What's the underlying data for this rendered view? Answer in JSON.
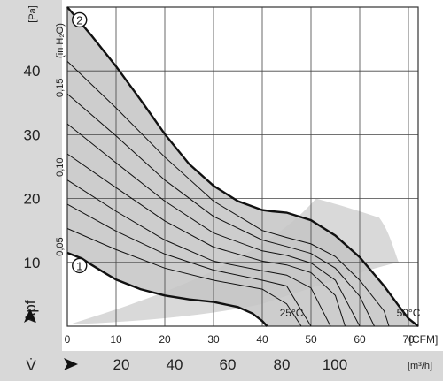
{
  "chart_data": {
    "type": "line",
    "title": "",
    "x_axis": {
      "label": "CFM",
      "unit_label": "[CFM]",
      "range": [
        0,
        72
      ],
      "ticks": [
        0,
        10,
        20,
        30,
        40,
        50,
        60,
        70
      ]
    },
    "x2_axis": {
      "symbol": "V̇",
      "unit_label": "[m³/h]",
      "ticks": [
        20,
        40,
        60,
        80,
        100
      ]
    },
    "y_axis": {
      "symbol": "Δpf",
      "unit_label": "[Pa]",
      "range": [
        0,
        50
      ],
      "ticks": [
        10,
        20,
        30,
        40
      ]
    },
    "y2_axis": {
      "unit_label": "(in H₂O)",
      "ticks": [
        "0,05",
        "0,10",
        "0,15"
      ],
      "tick_values_pa": [
        12.45,
        24.9,
        37.35
      ]
    },
    "grid": true,
    "series": [
      {
        "name": "2",
        "x": [
          0,
          5,
          10,
          15,
          20,
          25,
          30,
          35,
          40,
          42,
          45,
          50,
          55,
          60,
          65,
          68,
          70,
          72
        ],
        "y": [
          50,
          45.5,
          40.7,
          35.5,
          30.1,
          25.4,
          22,
          19.6,
          18.2,
          18,
          17.8,
          16.6,
          14.2,
          10.8,
          6.3,
          3.2,
          1.2,
          0
        ]
      },
      {
        "name": "1",
        "x": [
          0,
          3,
          5,
          8,
          10,
          15,
          20,
          25,
          30,
          35,
          38,
          40,
          41
        ],
        "y": [
          11.5,
          10.6,
          9.6,
          8.2,
          7.3,
          5.8,
          4.8,
          4.2,
          3.8,
          3.0,
          2.0,
          0.8,
          0
        ]
      }
    ],
    "operating_curves": [
      {
        "x": [
          0,
          10,
          20,
          30,
          40,
          45,
          50,
          55,
          60,
          65,
          66
        ],
        "y": [
          41.5,
          34.2,
          26.5,
          19.6,
          15.0,
          13.9,
          12.9,
          10.9,
          7.2,
          2.4,
          0
        ]
      },
      {
        "x": [
          0,
          10,
          20,
          30,
          40,
          45,
          50,
          55,
          60,
          63
        ],
        "y": [
          36.4,
          29.8,
          22.9,
          17.2,
          13.5,
          12.5,
          11.4,
          9.1,
          4.7,
          0
        ]
      },
      {
        "x": [
          0,
          10,
          20,
          30,
          40,
          45,
          50,
          55,
          60
        ],
        "y": [
          31.7,
          25.6,
          19.6,
          14.6,
          11.8,
          11.1,
          9.9,
          7.2,
          0
        ]
      },
      {
        "x": [
          0,
          10,
          20,
          30,
          40,
          45,
          50,
          55,
          57
        ],
        "y": [
          27.0,
          21.7,
          16.5,
          12.4,
          10.2,
          9.6,
          8.4,
          4.8,
          0
        ]
      },
      {
        "x": [
          0,
          10,
          20,
          30,
          40,
          45,
          50,
          54
        ],
        "y": [
          22.9,
          18.0,
          13.5,
          10.2,
          8.7,
          8.0,
          6.0,
          0
        ]
      },
      {
        "x": [
          0,
          10,
          20,
          30,
          40,
          45,
          50
        ],
        "y": [
          19.1,
          14.9,
          11.3,
          8.8,
          7.2,
          6.3,
          0
        ]
      },
      {
        "x": [
          0,
          10,
          20,
          30,
          40,
          45,
          48
        ],
        "y": [
          15.3,
          12.0,
          9.1,
          7.2,
          5.8,
          3.5,
          0
        ]
      }
    ],
    "annotations": [
      {
        "text": "25°C",
        "x": 46,
        "y": 1.5
      },
      {
        "text": "50°C",
        "x": 70,
        "y": 1.5
      }
    ],
    "colors": {
      "range_fill": "#c4c4c4",
      "secondary_band": "#d9d9d9",
      "side_panel": "#d8d8d8",
      "line": "#111111"
    }
  }
}
